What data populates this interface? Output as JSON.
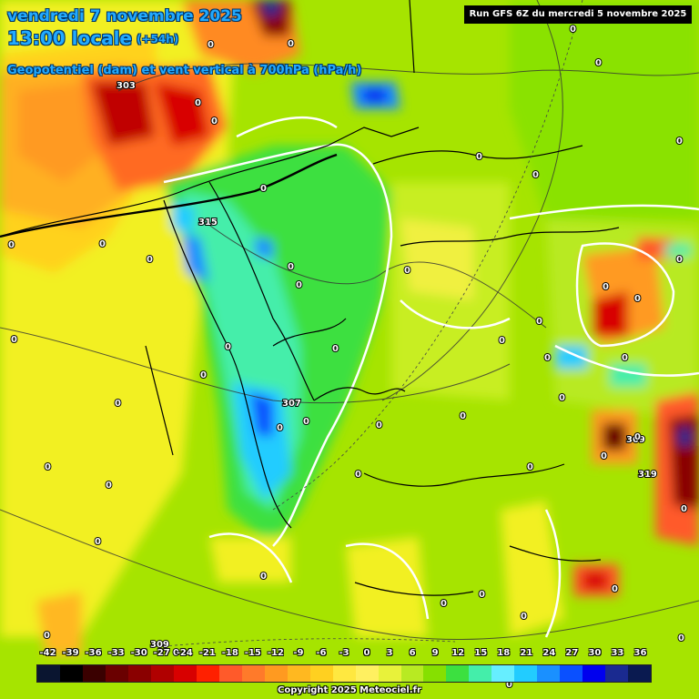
{
  "header": {
    "date": "vendredi 7 novembre 2025",
    "time": "13:00 locale",
    "step": "(+54h)",
    "parameter": "Geopotentiel (dam) et vent vertical à 700hPa (hPa/h)",
    "run": "Run GFS 6Z du mercredi 5 novembre 2025"
  },
  "legend": {
    "labels": [
      "-42",
      "-39",
      "-36",
      "-33",
      "-30",
      "-27",
      "-24",
      "-21",
      "-18",
      "-15",
      "-12",
      "-9",
      "-6",
      "-3",
      "0",
      "3",
      "6",
      "9",
      "12",
      "15",
      "18",
      "21",
      "24",
      "27",
      "30",
      "33",
      "36"
    ],
    "colors": [
      "#0a1530",
      "#000000",
      "#3a0000",
      "#6a0000",
      "#8a0000",
      "#b00000",
      "#d80000",
      "#ff2000",
      "#ff5a2a",
      "#ff7a2a",
      "#ff9a20",
      "#ffb820",
      "#ffd020",
      "#ffe840",
      "#fff060",
      "#e8f23a",
      "#b8ea22",
      "#86e000",
      "#3ce040",
      "#44eeaa",
      "#66eeff",
      "#22ccff",
      "#1a90ff",
      "#0a50ff",
      "#0000ee",
      "#1a2a90",
      "#0a1a50"
    ]
  },
  "geopotential_labels": [
    "303",
    "315",
    "307",
    "309",
    "319",
    "309"
  ],
  "vertical_velocity_labels": [
    "0",
    "0",
    "0",
    "0",
    "0",
    "0",
    "0",
    "0",
    "0",
    "0",
    "0",
    "0",
    "0",
    "0",
    "0",
    "0",
    "0",
    "0",
    "0",
    "0",
    "0",
    "0",
    "0",
    "0",
    "0",
    "0",
    "0",
    "0",
    "0",
    "0",
    "0",
    "0",
    "0",
    "0",
    "0",
    "0",
    "0",
    "0",
    "0",
    "0",
    "0",
    "0",
    "0",
    "0",
    "0",
    "0",
    "0",
    "0",
    "0",
    "0"
  ],
  "footer": {
    "copyright": "Copyright 2025 Meteociel.fr"
  }
}
